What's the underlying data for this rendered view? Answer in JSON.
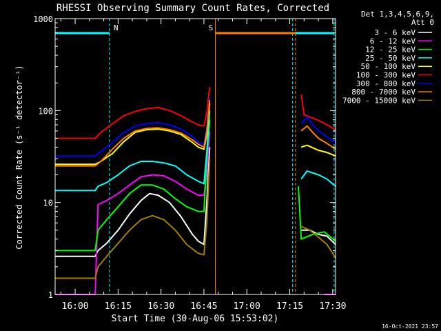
{
  "chart_data": {
    "type": "line",
    "title": "RHESSI Observing Summary Count Rates, Corrected",
    "xlabel": "Start Time (30-Aug-06 15:53:02)",
    "ylabel": "Corrected Count Rate (s⁻¹ detector⁻¹)",
    "yscale": "log",
    "ylim": [
      1,
      1000
    ],
    "xlim_minutes": [
      0,
      98
    ],
    "x_ticks": [
      {
        "label": "16:00",
        "min": 7
      },
      {
        "label": "16:15",
        "min": 22
      },
      {
        "label": "16:30",
        "min": 37
      },
      {
        "label": "16:45",
        "min": 52
      },
      {
        "label": "17:00",
        "min": 67
      },
      {
        "label": "17:15",
        "min": 82
      },
      {
        "label": "17:30",
        "min": 97
      }
    ],
    "y_ticks": [
      {
        "label": "1",
        "value": 1
      },
      {
        "label": "10",
        "value": 10
      },
      {
        "label": "100",
        "value": 100
      },
      {
        "label": "1000",
        "value": 1000
      }
    ],
    "legend": {
      "header": [
        "Det 1,3,4,5,6,9,",
        "Att 0"
      ],
      "placement": "right"
    },
    "series": [
      {
        "name": "3 - 6 keV",
        "color": "#ffffff",
        "segments": [
          {
            "x": [
              0,
              14,
              15,
              18,
              22,
              26,
              30,
              33,
              36,
              40,
              44,
              48,
              50,
              52,
              53,
              54
            ],
            "y": [
              2.6,
              2.6,
              3.0,
              3.6,
              5.0,
              7.5,
              10.5,
              12.5,
              12.0,
              10,
              7,
              4.5,
              3.8,
              3.5,
              10,
              40
            ]
          },
          {
            "x": [
              86,
              89,
              92,
              95,
              98
            ],
            "y": [
              5,
              5,
              4.5,
              4.3,
              3.5
            ]
          }
        ]
      },
      {
        "name": "6 - 12 keV",
        "color": "#ff00ff",
        "segments": [
          {
            "x": [
              0,
              14,
              15,
              18,
              22,
              26,
              30,
              34,
              38,
              42,
              46,
              50,
              52,
              53,
              54
            ],
            "y": [
              1.0,
              1.0,
              9.5,
              10.5,
              12.5,
              15.5,
              19,
              20,
              19.5,
              17,
              14,
              12,
              12,
              20,
              60
            ]
          },
          {
            "x": [
              94,
              98
            ],
            "y": [
              1.0,
              1.0
            ]
          }
        ]
      },
      {
        "name": "12 - 25 keV",
        "color": "#00ff00",
        "segments": [
          {
            "x": [
              0,
              14,
              15,
              18,
              22,
              26,
              30,
              34,
              38,
              42,
              46,
              50,
              52,
              53,
              54
            ],
            "y": [
              3.0,
              3.0,
              5.0,
              6.5,
              9.0,
              12.5,
              15.5,
              15.5,
              14,
              11,
              9,
              8,
              8,
              30,
              80
            ]
          },
          {
            "x": [
              85,
              86,
              90,
              94,
              98
            ],
            "y": [
              15,
              4.0,
              4.5,
              4.8,
              3.8
            ]
          }
        ]
      },
      {
        "name": "25 - 50 keV",
        "color": "#00ffff",
        "segments": [
          {
            "x": [
              0,
              14,
              15,
              18,
              22,
              26,
              30,
              34,
              38,
              42,
              46,
              50,
              52,
              53,
              54
            ],
            "y": [
              13.5,
              13.5,
              15,
              16.5,
              20,
              25,
              28,
              28,
              27,
              25,
              20,
              17,
              16,
              35,
              100
            ]
          },
          {
            "x": [
              86,
              88,
              92,
              95,
              98
            ],
            "y": [
              18,
              22,
              20,
              18,
              15
            ]
          }
        ]
      },
      {
        "name": "50 - 100 keV",
        "color": "#ffff00",
        "segments": [
          {
            "x": [
              0,
              14,
              16,
              20,
              24,
              28,
              32,
              36,
              40,
              44,
              48,
              50,
              52,
              53,
              54
            ],
            "y": [
              26,
              26,
              28,
              34,
              46,
              58,
              62,
              63,
              60,
              55,
              45,
              40,
              38,
              55,
              120
            ]
          },
          {
            "x": [
              86,
              88,
              92,
              95,
              98
            ],
            "y": [
              40,
              42,
              37,
              35,
              32
            ]
          }
        ]
      },
      {
        "name": "100 - 300 keV",
        "color": "#ff0000",
        "segments": [
          {
            "x": [
              0,
              14,
              16,
              20,
              24,
              28,
              32,
              36,
              40,
              44,
              48,
              50,
              52,
              53,
              54
            ],
            "y": [
              50,
              50,
              58,
              72,
              88,
              98,
              105,
              108,
              100,
              88,
              75,
              70,
              68,
              95,
              180
            ]
          },
          {
            "x": [
              86,
              87,
              89,
              92,
              95,
              98
            ],
            "y": [
              150,
              90,
              85,
              78,
              70,
              62
            ]
          }
        ]
      },
      {
        "name": "300 - 800 keV",
        "color": "#0000ff",
        "segments": [
          {
            "x": [
              0,
              14,
              16,
              20,
              24,
              28,
              32,
              36,
              40,
              44,
              48,
              50,
              52,
              53,
              54
            ],
            "y": [
              32,
              32,
              36,
              45,
              58,
              68,
              72,
              74,
              70,
              63,
              52,
              45,
              43,
              65,
              140
            ]
          },
          {
            "x": [
              86,
              88,
              90,
              92,
              95,
              98
            ],
            "y": [
              72,
              85,
              70,
              60,
              52,
              45
            ]
          }
        ]
      },
      {
        "name": "800 - 7000 keV",
        "color": "#ff8000",
        "segments": [
          {
            "x": [
              0,
              14,
              16,
              20,
              24,
              28,
              32,
              36,
              40,
              44,
              48,
              50,
              52,
              53,
              54
            ],
            "y": [
              25,
              25,
              28,
              38,
              50,
              60,
              64,
              65,
              62,
              57,
              48,
              43,
              40,
              60,
              130
            ]
          },
          {
            "x": [
              86,
              88,
              90,
              92,
              95,
              98
            ],
            "y": [
              60,
              68,
              58,
              50,
              44,
              38
            ]
          }
        ]
      },
      {
        "name": "7000 - 15000 keV",
        "color": "#a08000",
        "segments": [
          {
            "x": [
              0,
              14,
              15,
              18,
              22,
              26,
              30,
              34,
              38,
              42,
              46,
              50,
              52,
              53,
              54
            ],
            "y": [
              1.5,
              1.5,
              2.0,
              2.6,
              3.6,
              5.0,
              6.5,
              7.2,
              6.5,
              5.0,
              3.5,
              2.8,
              2.7,
              6,
              30
            ]
          },
          {
            "x": [
              86,
              89,
              92,
              95,
              98
            ],
            "y": [
              5.5,
              5.0,
              4.2,
              3.5,
              2.5
            ]
          }
        ]
      }
    ],
    "annotations": [
      {
        "text": "N",
        "color": "#00ffff",
        "bar_min": [
          0,
          19
        ],
        "line_min": [
          19
        ],
        "style": "dashed"
      },
      {
        "text": "",
        "color": "#00ffff",
        "bar_min": [
          83,
          97.5
        ],
        "line_min": [
          83,
          97.5
        ],
        "style": "dashed"
      },
      {
        "text": "S",
        "color": "#ff8000",
        "bar_min": [
          56,
          84
        ],
        "line_min": [
          56,
          84
        ],
        "style": "solid/dashed"
      }
    ],
    "footer_date": "16-Oct-2021 23:57"
  }
}
